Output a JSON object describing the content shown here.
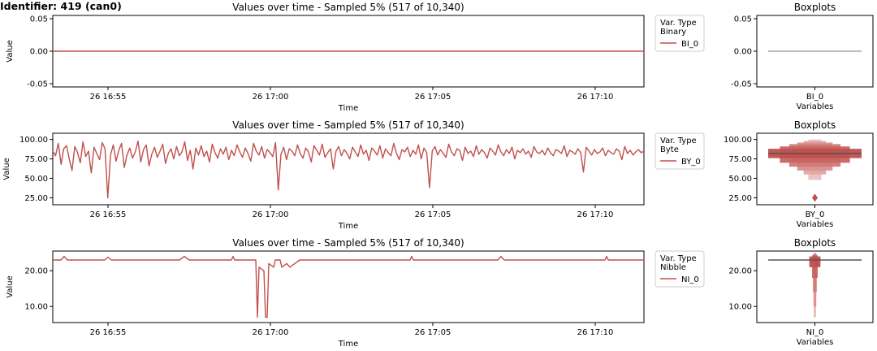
{
  "figure_title": "Identifier: 419 (can0)",
  "colors": {
    "series": "#c0504d",
    "series_light": "#e6b8b7",
    "series_mid": "#d48a88",
    "median": "#555555",
    "axis": "#000000"
  },
  "chart_data": [
    {
      "type": "line",
      "title": "Values over time - Sampled 5% (517 of 10,340)",
      "xlabel": "Time",
      "ylabel": "Value",
      "x_ticks": [
        "26 16:55",
        "26 17:00",
        "26 17:05",
        "26 17:10"
      ],
      "y_ticks": [
        "0.05",
        "0.00",
        "-0.05"
      ],
      "xlim_minutes": [
        -1.7,
        16.5
      ],
      "ylim": [
        -0.055,
        0.055
      ],
      "y_tick_values": [
        0.05,
        0.0,
        -0.05
      ],
      "legend": {
        "title": [
          "Var. Type",
          "Binary"
        ],
        "entries": [
          "BI_0"
        ],
        "placement": "outside-right"
      },
      "series": [
        {
          "name": "BI_0",
          "minutes": [
            -1.7,
            16.5
          ],
          "values": [
            0,
            0
          ]
        }
      ]
    },
    {
      "type": "line",
      "title": "Values over time - Sampled 5% (517 of 10,340)",
      "xlabel": "Time",
      "ylabel": "Value",
      "x_ticks": [
        "26 16:55",
        "26 17:00",
        "26 17:05",
        "26 17:10"
      ],
      "y_ticks": [
        "100.00",
        "75.00",
        "50.00",
        "25.00"
      ],
      "xlim_minutes": [
        -1.7,
        16.5
      ],
      "ylim": [
        16,
        108
      ],
      "y_tick_values": [
        100,
        75,
        50,
        25
      ],
      "legend": {
        "title": [
          "Var. Type",
          "Byte"
        ],
        "entries": [
          "BY_0"
        ],
        "placement": "outside-right"
      },
      "series": [
        {
          "name": "BY_0",
          "minutes": [
            -1.7,
            16.5
          ],
          "values": [
            85,
            79,
            95,
            68,
            88,
            92,
            75,
            60,
            91,
            83,
            70,
            97,
            78,
            85,
            57,
            90,
            82,
            74,
            96,
            88,
            25,
            80,
            93,
            72,
            86,
            95,
            64,
            80,
            89,
            76,
            84,
            98,
            71,
            87,
            93,
            66,
            81,
            90,
            77,
            85,
            94,
            69,
            82,
            88,
            75,
            91,
            79,
            84,
            97,
            73,
            86,
            62,
            89,
            80,
            92,
            78,
            85,
            71,
            94,
            83,
            76,
            88,
            81,
            90,
            74,
            86,
            79,
            93,
            84,
            77,
            89,
            82,
            72,
            95,
            85,
            80,
            91,
            76,
            87,
            83,
            78,
            96,
            35,
            81,
            90,
            74,
            88,
            85,
            79,
            93,
            82,
            76,
            89,
            84,
            71,
            92,
            86,
            80,
            94,
            77,
            83,
            88,
            62,
            85,
            91,
            79,
            87,
            82,
            75,
            90,
            84,
            78,
            93,
            81,
            86,
            73,
            89,
            85,
            80,
            92,
            76,
            88,
            83,
            79,
            95,
            82,
            74,
            87,
            84,
            90,
            78,
            86,
            81,
            93,
            75,
            89,
            83,
            38,
            85,
            91,
            80,
            87,
            82,
            77,
            94,
            84,
            79,
            88,
            86,
            73,
            90,
            82,
            85,
            78,
            92,
            81,
            87,
            83,
            76,
            89,
            85,
            80,
            93,
            84,
            79,
            87,
            82,
            90,
            75,
            86,
            83,
            88,
            81,
            85,
            77,
            91,
            84,
            82,
            86,
            80,
            89,
            83,
            79,
            87,
            85,
            82,
            92,
            78,
            86,
            84,
            81,
            88,
            83,
            58,
            90,
            85,
            80,
            87,
            82,
            84,
            89,
            79,
            86,
            83,
            81,
            88,
            85,
            74,
            91,
            82,
            86,
            80,
            84,
            87,
            83,
            85
          ]
        }
      ]
    },
    {
      "type": "line",
      "title": "Values over time - Sampled 5% (517 of 10,340)",
      "xlabel": "Time",
      "ylabel": "Value",
      "x_ticks": [
        "26 16:55",
        "26 17:00",
        "26 17:05",
        "26 17:10"
      ],
      "y_ticks": [
        "20.00",
        "10.00"
      ],
      "xlim_minutes": [
        -1.7,
        16.5
      ],
      "ylim": [
        5.5,
        25.5
      ],
      "y_tick_values": [
        20,
        10
      ],
      "legend": {
        "title": [
          "Var. Type",
          "Nibble"
        ],
        "entries": [
          "NI_0"
        ],
        "placement": "outside-right"
      },
      "series": [
        {
          "name": "NI_0",
          "points": [
            [
              -1.7,
              23
            ],
            [
              -1.45,
              23
            ],
            [
              -1.35,
              24
            ],
            [
              -1.25,
              23
            ],
            [
              -0.1,
              23
            ],
            [
              0,
              23.8
            ],
            [
              0.1,
              23
            ],
            [
              2.2,
              23
            ],
            [
              2.35,
              24
            ],
            [
              2.5,
              23
            ],
            [
              3.8,
              23
            ],
            [
              3.85,
              24
            ],
            [
              3.9,
              23
            ],
            [
              4.55,
              23
            ],
            [
              4.6,
              7
            ],
            [
              4.65,
              21
            ],
            [
              4.8,
              20
            ],
            [
              4.85,
              7
            ],
            [
              4.9,
              7
            ],
            [
              4.95,
              22
            ],
            [
              5.1,
              21
            ],
            [
              5.15,
              23
            ],
            [
              5.3,
              23
            ],
            [
              5.35,
              21
            ],
            [
              5.5,
              22
            ],
            [
              5.6,
              21
            ],
            [
              5.75,
              22
            ],
            [
              5.9,
              23
            ],
            [
              9.3,
              23
            ],
            [
              9.35,
              24
            ],
            [
              9.4,
              23
            ],
            [
              12.0,
              23
            ],
            [
              12.1,
              24
            ],
            [
              12.2,
              23
            ],
            [
              15.3,
              23
            ],
            [
              15.35,
              24
            ],
            [
              15.4,
              23
            ],
            [
              16.5,
              23
            ]
          ]
        }
      ]
    },
    {
      "type": "boxen",
      "title": "Boxplots",
      "xlabel": "Variables",
      "categories": [
        "BI_0"
      ],
      "y_ticks": [
        "0.05",
        "0.00",
        "-0.05"
      ],
      "ylim": [
        -0.055,
        0.055
      ],
      "y_tick_values": [
        0.05,
        0.0,
        -0.05
      ],
      "median": 0.0
    },
    {
      "type": "boxen",
      "title": "Boxplots",
      "xlabel": "Variables",
      "categories": [
        "BY_0"
      ],
      "y_ticks": [
        "100.00",
        "75.00",
        "50.00",
        "25.00"
      ],
      "ylim": [
        16,
        108
      ],
      "y_tick_values": [
        100,
        75,
        50,
        25
      ],
      "median": 82,
      "boxes": [
        [
          76,
          88,
          1.0
        ],
        [
          70,
          91,
          0.75
        ],
        [
          65,
          94,
          0.55
        ],
        [
          60,
          96,
          0.38
        ],
        [
          55,
          98,
          0.24
        ],
        [
          48,
          100,
          0.14
        ]
      ],
      "outliers": [
        25
      ]
    },
    {
      "type": "boxen",
      "title": "Boxplots",
      "xlabel": "Variables",
      "categories": [
        "NI_0"
      ],
      "y_ticks": [
        "20.00",
        "10.00"
      ],
      "ylim": [
        5.5,
        25.5
      ],
      "y_tick_values": [
        20,
        10
      ],
      "median": 23,
      "boxes": [
        [
          21,
          24,
          0.12
        ],
        [
          18,
          24.3,
          0.06
        ],
        [
          14,
          24.6,
          0.04
        ],
        [
          10,
          24.8,
          0.03
        ],
        [
          7,
          25,
          0.02
        ]
      ]
    }
  ]
}
